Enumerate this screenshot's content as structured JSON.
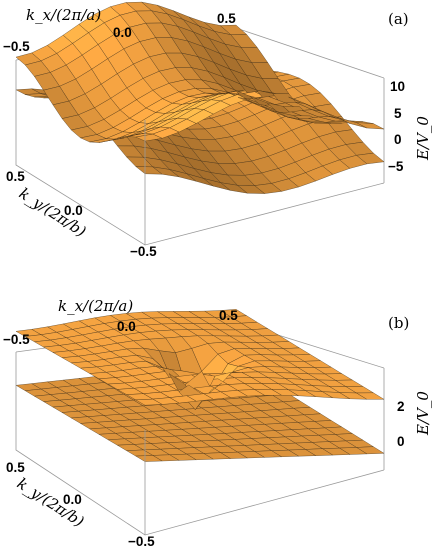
{
  "figure": {
    "panels": [
      {
        "label": "(a)",
        "xlabel": "k_x/(2π/a)",
        "ylabel": "k_y/(2π/b)",
        "zlabel": "E/V_0",
        "x_ticks": [
          "−0.5",
          "0.0",
          "0.5"
        ],
        "y_ticks": [
          "0.5",
          "0.0",
          "−0.5"
        ],
        "z_ticks": [
          "10",
          "5",
          "0",
          "−5"
        ]
      },
      {
        "label": "(b)",
        "xlabel": "k_x/(2π/a)",
        "ylabel": "k_y/(2π/b)",
        "zlabel": "E/V_0",
        "x_ticks": [
          "−0.5",
          "0.0",
          "0.5"
        ],
        "y_ticks": [
          "0.5",
          "0.0",
          "−0.5"
        ],
        "z_ticks": [
          "2",
          "0"
        ]
      }
    ]
  },
  "chart_data": [
    {
      "type": "surface",
      "title": "",
      "xlabel": "k_x/(2π/a)",
      "ylabel": "k_y/(2π/b)",
      "zlabel": "E/V_0",
      "xlim": [
        -0.5,
        0.5
      ],
      "ylim": [
        -0.5,
        0.5
      ],
      "zlim": [
        -7,
        11
      ],
      "surfaces": 2,
      "surface_color": "#f0a040",
      "mesh_color": "#3a2a14"
    },
    {
      "type": "surface",
      "title": "",
      "xlabel": "k_x/(2π/a)",
      "ylabel": "k_y/(2π/b)",
      "zlabel": "E/V_0",
      "xlim": [
        -0.5,
        0.5
      ],
      "ylim": [
        -0.5,
        0.5
      ],
      "zlim": [
        -0.5,
        3.5
      ],
      "surfaces": 2,
      "surface_color": "#f0a040",
      "mesh_color": "#3a2a14"
    }
  ]
}
